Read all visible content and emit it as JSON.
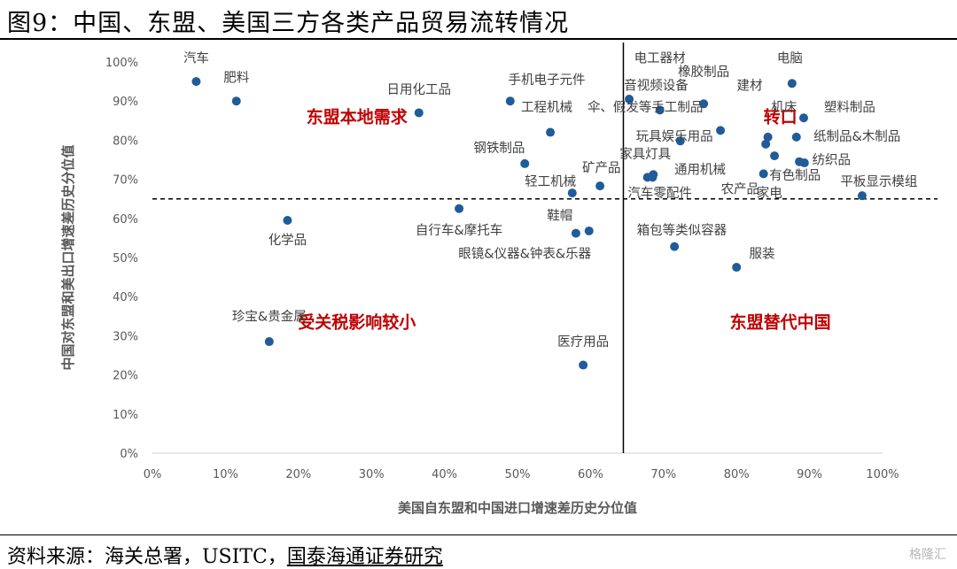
{
  "title": "图9：中国、东盟、美国三方各类产品贸易流转情况",
  "source": {
    "prefix": "资料来源：海关总署，USITC，",
    "org": "国泰海通证券研究"
  },
  "watermark": "格隆汇",
  "colors": {
    "point": "#1f5c99",
    "region_label": "#c00000",
    "axis": "#000000",
    "text": "#404040"
  },
  "chart_data": {
    "type": "scatter",
    "xlabel": "美国自东盟和中国进口增速差历史分位值",
    "ylabel": "中国对东盟和美出口增速差历史分位值",
    "xlim": [
      0,
      1
    ],
    "ylim": [
      0,
      1
    ],
    "x_ticks": [
      "0%",
      "10%",
      "20%",
      "30%",
      "40%",
      "50%",
      "60%",
      "70%",
      "80%",
      "90%",
      "100%"
    ],
    "y_ticks": [
      "0%",
      "10%",
      "20%",
      "30%",
      "40%",
      "50%",
      "60%",
      "70%",
      "80%",
      "90%",
      "100%"
    ],
    "divider_x": 0.645,
    "divider_y": 0.65,
    "region_labels": [
      {
        "text": "东盟本地需求",
        "x": 0.28,
        "y": 0.845
      },
      {
        "text": "转口",
        "x": 0.86,
        "y": 0.845
      },
      {
        "text": "受关税影响较小",
        "x": 0.28,
        "y": 0.32
      },
      {
        "text": "东盟替代中国",
        "x": 0.86,
        "y": 0.32
      }
    ],
    "points": [
      {
        "label": "汽车",
        "x": 0.06,
        "y": 0.95,
        "lx": 0.06,
        "ly": 1.01
      },
      {
        "label": "肥料",
        "x": 0.115,
        "y": 0.9,
        "lx": 0.115,
        "ly": 0.96
      },
      {
        "label": "日用化工品",
        "x": 0.365,
        "y": 0.87,
        "lx": 0.365,
        "ly": 0.93
      },
      {
        "label": "手机电子元件",
        "x": 0.49,
        "y": 0.9,
        "lx": 0.54,
        "ly": 0.955
      },
      {
        "label": "工程机械",
        "x": 0.545,
        "y": 0.82,
        "lx": 0.54,
        "ly": 0.885
      },
      {
        "label": "钢铁制品",
        "x": 0.51,
        "y": 0.74,
        "lx": 0.475,
        "ly": 0.78
      },
      {
        "label": "轻工机械",
        "x": 0.575,
        "y": 0.665,
        "lx": 0.545,
        "ly": 0.695
      },
      {
        "label": "矿产品",
        "x": 0.613,
        "y": 0.683,
        "lx": 0.615,
        "ly": 0.73
      },
      {
        "label": "化学品",
        "x": 0.185,
        "y": 0.595,
        "lx": 0.185,
        "ly": 0.545
      },
      {
        "label": "自行车&摩托车",
        "x": 0.42,
        "y": 0.625,
        "lx": 0.42,
        "ly": 0.57
      },
      {
        "label": "鞋帽",
        "x": 0.598,
        "y": 0.568,
        "lx": 0.558,
        "ly": 0.608
      },
      {
        "label": "眼镜&仪器&钟表&乐器",
        "x": 0.58,
        "y": 0.562,
        "lx": 0.51,
        "ly": 0.51
      },
      {
        "label": "珍宝&贵金属",
        "x": 0.16,
        "y": 0.285,
        "lx": 0.16,
        "ly": 0.35
      },
      {
        "label": "医疗用品",
        "x": 0.59,
        "y": 0.225,
        "lx": 0.59,
        "ly": 0.285
      },
      {
        "label": "电工器材",
        "x": 0.653,
        "y": 0.905,
        "lx": 0.695,
        "ly": 1.01
      },
      {
        "label": "橡胶制品",
        "x": 0.755,
        "y": 0.893,
        "lx": 0.755,
        "ly": 0.975
      },
      {
        "label": "音视频设备",
        "x": 0.695,
        "y": 0.877,
        "lx": 0.69,
        "ly": 0.94
      },
      {
        "label": "伞、假发等手工制品",
        "x": 0.778,
        "y": 0.825,
        "lx": 0.675,
        "ly": 0.885
      },
      {
        "label": "玩具娱乐用品",
        "x": 0.723,
        "y": 0.798,
        "lx": 0.715,
        "ly": 0.81
      },
      {
        "label": "家具灯具",
        "x": 0.678,
        "y": 0.705,
        "lx": 0.675,
        "ly": 0.765
      },
      {
        "label": "通用机械",
        "x": 0.686,
        "y": 0.712,
        "lx": 0.75,
        "ly": 0.725
      },
      {
        "label": "汽车零配件",
        "x": 0.685,
        "y": 0.705,
        "lx": 0.695,
        "ly": 0.665
      },
      {
        "label": "电脑",
        "x": 0.876,
        "y": 0.945,
        "lx": 0.873,
        "ly": 1.01
      },
      {
        "label": "建材",
        "x": 0.84,
        "y": 0.79,
        "lx": 0.818,
        "ly": 0.94
      },
      {
        "label": "机床",
        "x": 0.843,
        "y": 0.808,
        "lx": 0.865,
        "ly": 0.885
      },
      {
        "label": "塑料制品",
        "x": 0.892,
        "y": 0.857,
        "lx": 0.955,
        "ly": 0.885
      },
      {
        "label": "纸制品&木制品",
        "x": 0.882,
        "y": 0.808,
        "lx": 0.965,
        "ly": 0.81
      },
      {
        "label": "纺织品",
        "x": 0.886,
        "y": 0.745,
        "lx": 0.93,
        "ly": 0.75
      },
      {
        "label": "有色制品",
        "x": 0.893,
        "y": 0.742,
        "lx": 0.88,
        "ly": 0.71
      },
      {
        "label": "农产品",
        "x": 0.837,
        "y": 0.714,
        "lx": 0.805,
        "ly": 0.675
      },
      {
        "label": "家电",
        "x": 0.852,
        "y": 0.76,
        "lx": 0.845,
        "ly": 0.665
      },
      {
        "label": "平板显示模组",
        "x": 0.972,
        "y": 0.658,
        "lx": 0.995,
        "ly": 0.695
      },
      {
        "label": "箱包等类似容器",
        "x": 0.715,
        "y": 0.528,
        "lx": 0.725,
        "ly": 0.57
      },
      {
        "label": "服装",
        "x": 0.8,
        "y": 0.475,
        "lx": 0.835,
        "ly": 0.51
      }
    ]
  }
}
